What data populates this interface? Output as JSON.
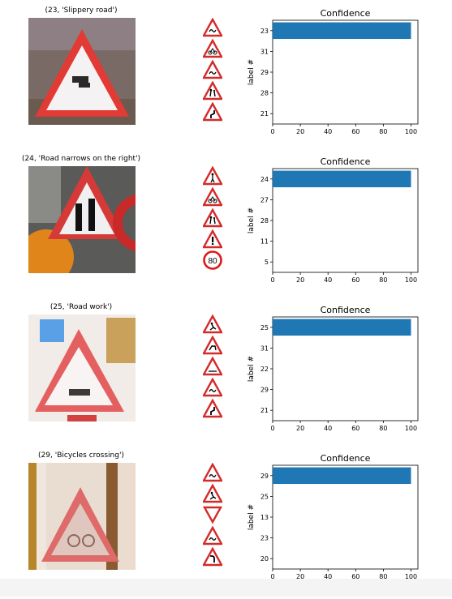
{
  "colors": {
    "bar": "#1f77b4",
    "sign_red": "#d42a2a"
  },
  "rows": [
    {
      "title": "(23, 'Slippery road')",
      "thumbnails": [
        "slippery-road-sign",
        "bicycles-crossing-sign",
        "slippery-road-sign",
        "children-crossing-sign",
        "double-curve-sign"
      ]
    },
    {
      "title": "(24, 'Road narrows on the right')",
      "thumbnails": [
        "pedestrians-sign",
        "bicycles-crossing-sign",
        "children-crossing-sign",
        "caution-sign",
        "speed-limit-80-sign"
      ],
      "speed_limit_text": "80"
    },
    {
      "title": "(25, 'Road work')",
      "thumbnails": [
        "road-work-sign",
        "wild-animals-sign",
        "beware-ice-sign",
        "slippery-road-sign",
        "double-curve-sign"
      ]
    },
    {
      "title": "(29, 'Bicycles crossing')",
      "thumbnails": [
        "slippery-road-sign",
        "road-work-sign",
        "yield-sign",
        "slippery-road-sign",
        "dangerous-curve-sign"
      ]
    }
  ],
  "chart_data": [
    {
      "type": "bar",
      "orientation": "horizontal",
      "title": "Confidence",
      "ylabel": "label #",
      "xlabel": "",
      "categories": [
        "23",
        "31",
        "29",
        "28",
        "21"
      ],
      "values": [
        100,
        0,
        0,
        0,
        0
      ],
      "xlim": [
        0,
        105
      ],
      "xticks": [
        0,
        20,
        40,
        60,
        80,
        100
      ]
    },
    {
      "type": "bar",
      "orientation": "horizontal",
      "title": "Confidence",
      "ylabel": "label #",
      "xlabel": "",
      "categories": [
        "24",
        "27",
        "28",
        "11",
        "5"
      ],
      "values": [
        100,
        0,
        0,
        0,
        0
      ],
      "xlim": [
        0,
        105
      ],
      "xticks": [
        0,
        20,
        40,
        60,
        80,
        100
      ]
    },
    {
      "type": "bar",
      "orientation": "horizontal",
      "title": "Confidence",
      "ylabel": "label #",
      "xlabel": "",
      "categories": [
        "25",
        "31",
        "22",
        "29",
        "21"
      ],
      "values": [
        100,
        0,
        0,
        0,
        0
      ],
      "xlim": [
        0,
        105
      ],
      "xticks": [
        0,
        20,
        40,
        60,
        80,
        100
      ]
    },
    {
      "type": "bar",
      "orientation": "horizontal",
      "title": "Confidence",
      "ylabel": "label #",
      "xlabel": "",
      "categories": [
        "29",
        "25",
        "13",
        "23",
        "20"
      ],
      "values": [
        100,
        0,
        0,
        0,
        0
      ],
      "xlim": [
        0,
        105
      ],
      "xticks": [
        0,
        20,
        40,
        60,
        80,
        100
      ]
    }
  ]
}
